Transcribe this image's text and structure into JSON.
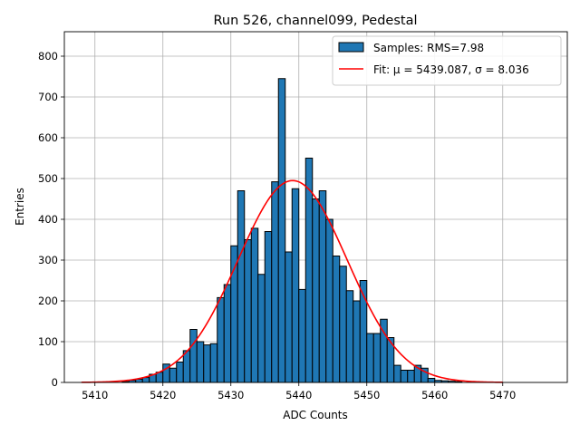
{
  "chart_data": {
    "type": "bar",
    "title": "Run 526, channel099, Pedestal",
    "xlabel": "ADC Counts",
    "ylabel": "Entries",
    "xlim": [
      5405.5,
      5479.5
    ],
    "ylim": [
      0,
      860
    ],
    "xticks": [
      5410,
      5420,
      5430,
      5440,
      5450,
      5460,
      5470
    ],
    "yticks": [
      0,
      100,
      200,
      300,
      400,
      500,
      600,
      700,
      800
    ],
    "grid": true,
    "legend_position": "top-right",
    "bin_width": 1,
    "series": [
      {
        "name": "Samples: RMS=7.98",
        "kind": "histogram",
        "color": "#1f77b4",
        "edgecolor": "#000000",
        "bin_starts": [
          5414,
          5415,
          5416,
          5417,
          5418,
          5419,
          5420,
          5421,
          5422,
          5423,
          5424,
          5425,
          5426,
          5427,
          5428,
          5429,
          5430,
          5431,
          5432,
          5433,
          5434,
          5435,
          5436,
          5437,
          5438,
          5439,
          5440,
          5441,
          5442,
          5443,
          5444,
          5445,
          5446,
          5447,
          5448,
          5449,
          5450,
          5451,
          5452,
          5453,
          5454,
          5455,
          5456,
          5457,
          5458,
          5459,
          5460,
          5461,
          5462,
          5463
        ],
        "values": [
          2,
          5,
          8,
          12,
          20,
          25,
          45,
          35,
          50,
          78,
          130,
          100,
          92,
          95,
          208,
          240,
          335,
          470,
          350,
          378,
          265,
          370,
          492,
          745,
          320,
          475,
          228,
          550,
          450,
          470,
          400,
          310,
          285,
          225,
          200,
          250,
          120,
          120,
          155,
          110,
          42,
          30,
          30,
          42,
          35,
          10,
          5,
          4,
          3,
          2
        ]
      },
      {
        "name": "Fit: μ = 5439.087, σ = 8.036",
        "kind": "gaussian",
        "color": "#ff0000",
        "mu": 5439.087,
        "sigma": 8.036,
        "amplitude": 495,
        "x_range": [
          5408,
          5470
        ]
      }
    ]
  }
}
